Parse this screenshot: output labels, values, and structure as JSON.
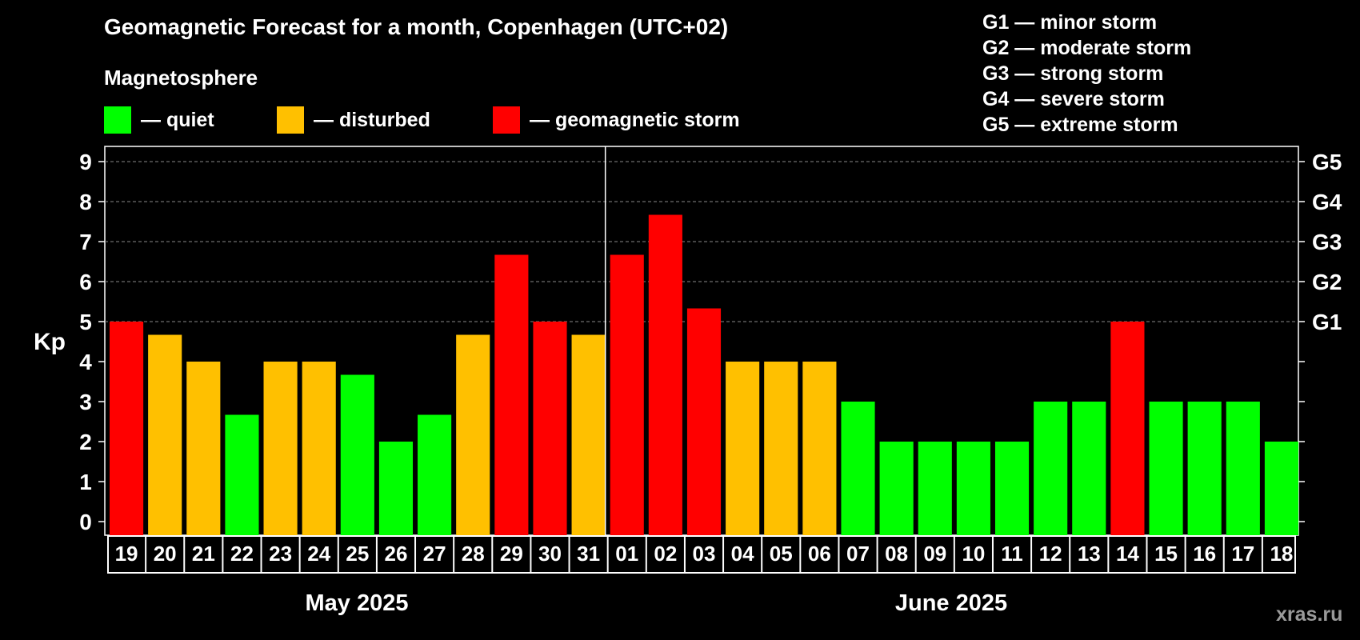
{
  "title": "Geomagnetic Forecast for a month, Copenhagen (UTC+02)",
  "subtitle": "Magnetosphere",
  "legend": [
    {
      "label": "— quiet",
      "color": "#00ff00"
    },
    {
      "label": "— disturbed",
      "color": "#ffc000"
    },
    {
      "label": "— geomagnetic storm",
      "color": "#ff0000"
    }
  ],
  "storm_scale": [
    "G1 — minor storm",
    "G2 — moderate storm",
    "G3 — strong storm",
    "G4 — severe storm",
    "G5 — extreme storm"
  ],
  "watermark": "xras.ru",
  "chart_data": {
    "type": "bar",
    "ylabel": "Kp",
    "ylim": [
      0,
      9
    ],
    "yticks": [
      0,
      1,
      2,
      3,
      4,
      5,
      6,
      7,
      8,
      9
    ],
    "right_ticks": [
      {
        "value": 5,
        "label": "G1"
      },
      {
        "value": 6,
        "label": "G2"
      },
      {
        "value": 7,
        "label": "G3"
      },
      {
        "value": 8,
        "label": "G4"
      },
      {
        "value": 9,
        "label": "G5"
      }
    ],
    "grid": "dashed horizontal lines at 5–9",
    "months": [
      {
        "label": "May 2025",
        "days": 13
      },
      {
        "label": "June 2025",
        "days": 18
      }
    ],
    "categories": [
      "19",
      "20",
      "21",
      "22",
      "23",
      "24",
      "25",
      "26",
      "27",
      "28",
      "29",
      "30",
      "31",
      "01",
      "02",
      "03",
      "04",
      "05",
      "06",
      "07",
      "08",
      "09",
      "10",
      "11",
      "12",
      "13",
      "14",
      "15",
      "16",
      "17",
      "18"
    ],
    "values": [
      5,
      4.67,
      4,
      2.67,
      4,
      4,
      3.67,
      2,
      2.67,
      4.67,
      6.67,
      5,
      4.67,
      6.67,
      7.67,
      5.33,
      4,
      4,
      4,
      3,
      2,
      2,
      2,
      2,
      3,
      3,
      5,
      3,
      3,
      3,
      2
    ],
    "status": [
      "storm",
      "disturbed",
      "disturbed",
      "quiet",
      "disturbed",
      "disturbed",
      "quiet",
      "quiet",
      "quiet",
      "disturbed",
      "storm",
      "storm",
      "disturbed",
      "storm",
      "storm",
      "storm",
      "disturbed",
      "disturbed",
      "disturbed",
      "quiet",
      "quiet",
      "quiet",
      "quiet",
      "quiet",
      "quiet",
      "quiet",
      "storm",
      "quiet",
      "quiet",
      "quiet",
      "quiet"
    ],
    "colors": {
      "quiet": "#00ff00",
      "disturbed": "#ffc000",
      "storm": "#ff0000"
    }
  }
}
